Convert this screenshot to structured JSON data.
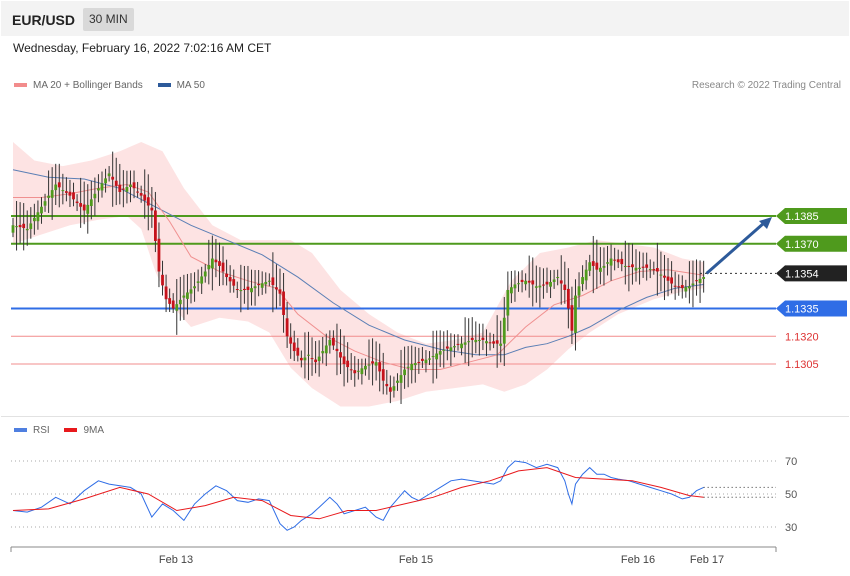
{
  "header": {
    "pair": "EUR/USD",
    "interval": "30 MIN"
  },
  "timestamp": "Wednesday, February 16, 2022 7:02:16 AM CET",
  "copyright": "Research © 2022 Trading Central",
  "legend_price": [
    {
      "label": "MA 20 + Bollinger Bands",
      "color": "#f28c8c"
    },
    {
      "label": "MA 50",
      "color": "#2d5a9a"
    }
  ],
  "legend_rsi": [
    {
      "label": "RSI",
      "color": "#4f7fe0"
    },
    {
      "label": "9MA",
      "color": "#e8191c"
    }
  ],
  "colors": {
    "resistance": "#4f9a1d",
    "current": "#222222",
    "pivot": "#2f6de6",
    "support": "#f28c8c",
    "up_candle": "#4f9a1d",
    "down_candle": "#c5121b",
    "band": "#fde3e3",
    "arrow": "#2d5a9a"
  },
  "chart_data": [
    {
      "type": "candlestick",
      "title": "EUR/USD",
      "x_labels": [
        "Feb 13",
        "Feb 15",
        "Feb 16",
        "Feb 17"
      ],
      "ylim": [
        1.1265,
        1.144
      ],
      "levels": [
        {
          "label": "1.1385",
          "value": 1.1385,
          "kind": "resistance"
        },
        {
          "label": "1.1370",
          "value": 1.137,
          "kind": "resistance"
        },
        {
          "label": "1.1354",
          "value": 1.1354,
          "kind": "current"
        },
        {
          "label": "1.1335",
          "value": 1.1335,
          "kind": "pivot"
        },
        {
          "label": "1.1320",
          "value": 1.132,
          "kind": "support"
        },
        {
          "label": "1.1305",
          "value": 1.1305,
          "kind": "support"
        }
      ],
      "close_path": [
        [
          0,
          1.138
        ],
        [
          4,
          1.1378
        ],
        [
          8,
          1.139
        ],
        [
          12,
          1.1402
        ],
        [
          16,
          1.1396
        ],
        [
          20,
          1.1388
        ],
        [
          24,
          1.14
        ],
        [
          27,
          1.1408
        ],
        [
          30,
          1.1398
        ],
        [
          33,
          1.1402
        ],
        [
          36,
          1.1396
        ],
        [
          39,
          1.1388
        ],
        [
          41,
          1.1355
        ],
        [
          43,
          1.134
        ],
        [
          45,
          1.1335
        ],
        [
          48,
          1.1342
        ],
        [
          51,
          1.1347
        ],
        [
          54,
          1.1355
        ],
        [
          56,
          1.1362
        ],
        [
          58,
          1.1358
        ],
        [
          60,
          1.1352
        ],
        [
          63,
          1.1345
        ],
        [
          66,
          1.1345
        ],
        [
          69,
          1.1348
        ],
        [
          72,
          1.135
        ],
        [
          75,
          1.1343
        ],
        [
          77,
          1.132
        ],
        [
          79,
          1.1312
        ],
        [
          81,
          1.1307
        ],
        [
          83,
          1.131
        ],
        [
          85,
          1.1306
        ],
        [
          87,
          1.1312
        ],
        [
          89,
          1.1318
        ],
        [
          91,
          1.1312
        ],
        [
          93,
          1.1305
        ],
        [
          96,
          1.13
        ],
        [
          99,
          1.1304
        ],
        [
          102,
          1.1306
        ],
        [
          104,
          1.1296
        ],
        [
          106,
          1.129
        ],
        [
          108,
          1.1296
        ],
        [
          110,
          1.1302
        ],
        [
          112,
          1.1305
        ],
        [
          114,
          1.1306
        ],
        [
          117,
          1.1308
        ],
        [
          120,
          1.1312
        ],
        [
          123,
          1.1314
        ],
        [
          126,
          1.1316
        ],
        [
          129,
          1.1318
        ],
        [
          132,
          1.1318
        ],
        [
          135,
          1.1316
        ],
        [
          137,
          1.1316
        ],
        [
          138,
          1.133
        ],
        [
          139,
          1.1345
        ],
        [
          141,
          1.1348
        ],
        [
          144,
          1.135
        ],
        [
          147,
          1.1347
        ],
        [
          150,
          1.1348
        ],
        [
          153,
          1.1352
        ],
        [
          155,
          1.1345
        ],
        [
          156,
          1.1335
        ],
        [
          157,
          1.1323
        ],
        [
          158,
          1.1342
        ],
        [
          160,
          1.1352
        ],
        [
          162,
          1.136
        ],
        [
          164,
          1.1356
        ],
        [
          166,
          1.1358
        ],
        [
          168,
          1.1362
        ],
        [
          170,
          1.136
        ],
        [
          172,
          1.1358
        ],
        [
          175,
          1.1357
        ],
        [
          178,
          1.1357
        ],
        [
          181,
          1.1355
        ],
        [
          184,
          1.135
        ],
        [
          186,
          1.1347
        ],
        [
          188,
          1.1346
        ],
        [
          190,
          1.1347
        ],
        [
          192,
          1.135
        ],
        [
          194,
          1.1352
        ]
      ],
      "ma20_path": [
        [
          0,
          1.1395
        ],
        [
          8,
          1.1395
        ],
        [
          16,
          1.1397
        ],
        [
          24,
          1.14
        ],
        [
          32,
          1.1402
        ],
        [
          38,
          1.1398
        ],
        [
          44,
          1.1382
        ],
        [
          50,
          1.1363
        ],
        [
          58,
          1.1355
        ],
        [
          66,
          1.135
        ],
        [
          74,
          1.1346
        ],
        [
          80,
          1.1332
        ],
        [
          88,
          1.132
        ],
        [
          96,
          1.1312
        ],
        [
          104,
          1.1306
        ],
        [
          112,
          1.1302
        ],
        [
          120,
          1.1302
        ],
        [
          128,
          1.1306
        ],
        [
          136,
          1.131
        ],
        [
          144,
          1.1325
        ],
        [
          152,
          1.1337
        ],
        [
          160,
          1.1342
        ],
        [
          168,
          1.135
        ],
        [
          176,
          1.1355
        ],
        [
          184,
          1.1356
        ],
        [
          194,
          1.1353
        ]
      ],
      "bb_upper": [
        [
          0,
          1.1425
        ],
        [
          6,
          1.1415
        ],
        [
          14,
          1.1412
        ],
        [
          22,
          1.1415
        ],
        [
          30,
          1.142
        ],
        [
          36,
          1.1425
        ],
        [
          42,
          1.142
        ],
        [
          48,
          1.14
        ],
        [
          56,
          1.138
        ],
        [
          64,
          1.1372
        ],
        [
          72,
          1.1372
        ],
        [
          78,
          1.1372
        ],
        [
          84,
          1.1365
        ],
        [
          92,
          1.1345
        ],
        [
          100,
          1.1332
        ],
        [
          108,
          1.1322
        ],
        [
          116,
          1.1316
        ],
        [
          124,
          1.1318
        ],
        [
          132,
          1.1322
        ],
        [
          140,
          1.135
        ],
        [
          148,
          1.1365
        ],
        [
          156,
          1.1368
        ],
        [
          164,
          1.1372
        ],
        [
          172,
          1.137
        ],
        [
          180,
          1.1368
        ],
        [
          188,
          1.1362
        ],
        [
          194,
          1.136
        ]
      ],
      "bb_lower": [
        [
          0,
          1.137
        ],
        [
          8,
          1.1375
        ],
        [
          16,
          1.138
        ],
        [
          24,
          1.1383
        ],
        [
          32,
          1.1385
        ],
        [
          36,
          1.1378
        ],
        [
          40,
          1.1355
        ],
        [
          44,
          1.1338
        ],
        [
          50,
          1.1325
        ],
        [
          58,
          1.133
        ],
        [
          66,
          1.1328
        ],
        [
          72,
          1.1322
        ],
        [
          78,
          1.1303
        ],
        [
          84,
          1.1292
        ],
        [
          92,
          1.1282
        ],
        [
          100,
          1.1282
        ],
        [
          108,
          1.1285
        ],
        [
          116,
          1.129
        ],
        [
          124,
          1.1292
        ],
        [
          132,
          1.1294
        ],
        [
          138,
          1.129
        ],
        [
          144,
          1.1294
        ],
        [
          150,
          1.1302
        ],
        [
          156,
          1.1313
        ],
        [
          162,
          1.1322
        ],
        [
          170,
          1.1332
        ],
        [
          180,
          1.134
        ],
        [
          188,
          1.1344
        ],
        [
          194,
          1.1346
        ]
      ],
      "ma50_path": [
        [
          0,
          1.141
        ],
        [
          10,
          1.1406
        ],
        [
          20,
          1.1405
        ],
        [
          30,
          1.14
        ],
        [
          40,
          1.139
        ],
        [
          50,
          1.138
        ],
        [
          60,
          1.1372
        ],
        [
          70,
          1.1364
        ],
        [
          80,
          1.1352
        ],
        [
          90,
          1.1338
        ],
        [
          100,
          1.1326
        ],
        [
          110,
          1.1318
        ],
        [
          120,
          1.1313
        ],
        [
          130,
          1.131
        ],
        [
          138,
          1.131
        ],
        [
          144,
          1.1314
        ],
        [
          150,
          1.1316
        ],
        [
          156,
          1.132
        ],
        [
          162,
          1.1325
        ],
        [
          170,
          1.1334
        ],
        [
          178,
          1.1341
        ],
        [
          186,
          1.1346
        ],
        [
          194,
          1.1348
        ]
      ]
    },
    {
      "type": "line",
      "title": "RSI",
      "ylim": [
        20,
        80
      ],
      "y_ticks": [
        70,
        50,
        30
      ],
      "series": [
        {
          "name": "RSI",
          "values": [
            [
              0,
              40
            ],
            [
              4,
              39
            ],
            [
              8,
              42
            ],
            [
              12,
              48
            ],
            [
              16,
              44
            ],
            [
              20,
              52
            ],
            [
              24,
              58
            ],
            [
              27,
              56
            ],
            [
              30,
              55
            ],
            [
              33,
              54
            ],
            [
              36,
              50
            ],
            [
              39,
              36
            ],
            [
              42,
              44
            ],
            [
              45,
              40
            ],
            [
              48,
              34
            ],
            [
              51,
              44
            ],
            [
              54,
              50
            ],
            [
              57,
              55
            ],
            [
              60,
              52
            ],
            [
              63,
              46
            ],
            [
              66,
              45
            ],
            [
              69,
              47
            ],
            [
              72,
              46
            ],
            [
              75,
              32
            ],
            [
              77,
              28
            ],
            [
              79,
              30
            ],
            [
              81,
              34
            ],
            [
              84,
              38
            ],
            [
              86,
              42
            ],
            [
              89,
              48
            ],
            [
              91,
              44
            ],
            [
              93,
              38
            ],
            [
              96,
              40
            ],
            [
              99,
              42
            ],
            [
              102,
              36
            ],
            [
              104,
              34
            ],
            [
              106,
              42
            ],
            [
              108,
              47
            ],
            [
              110,
              52
            ],
            [
              112,
              48
            ],
            [
              114,
              46
            ],
            [
              117,
              50
            ],
            [
              120,
              54
            ],
            [
              123,
              58
            ],
            [
              126,
              59
            ],
            [
              129,
              58
            ],
            [
              132,
              57
            ],
            [
              135,
              56
            ],
            [
              137,
              58
            ],
            [
              139,
              66
            ],
            [
              141,
              70
            ],
            [
              144,
              69
            ],
            [
              147,
              66
            ],
            [
              150,
              68
            ],
            [
              153,
              66
            ],
            [
              155,
              58
            ],
            [
              156,
              50
            ],
            [
              157,
              44
            ],
            [
              158,
              56
            ],
            [
              160,
              62
            ],
            [
              162,
              66
            ],
            [
              164,
              62
            ],
            [
              166,
              62
            ],
            [
              168,
              60
            ],
            [
              170,
              59
            ],
            [
              173,
              58
            ],
            [
              176,
              56
            ],
            [
              179,
              54
            ],
            [
              182,
              52
            ],
            [
              185,
              50
            ],
            [
              188,
              47
            ],
            [
              190,
              48
            ],
            [
              192,
              52
            ],
            [
              194,
              54
            ]
          ]
        },
        {
          "name": "9MA",
          "values": [
            [
              0,
              40
            ],
            [
              10,
              41
            ],
            [
              20,
              47
            ],
            [
              30,
              54
            ],
            [
              38,
              50
            ],
            [
              46,
              40
            ],
            [
              54,
              43
            ],
            [
              62,
              48
            ],
            [
              70,
              46
            ],
            [
              78,
              37
            ],
            [
              86,
              35
            ],
            [
              94,
              40
            ],
            [
              102,
              40
            ],
            [
              110,
              44
            ],
            [
              118,
              48
            ],
            [
              126,
              54
            ],
            [
              134,
              58
            ],
            [
              142,
              64
            ],
            [
              150,
              66
            ],
            [
              158,
              60
            ],
            [
              166,
              59
            ],
            [
              174,
              58
            ],
            [
              182,
              54
            ],
            [
              190,
              49
            ],
            [
              194,
              48
            ]
          ]
        }
      ]
    }
  ]
}
